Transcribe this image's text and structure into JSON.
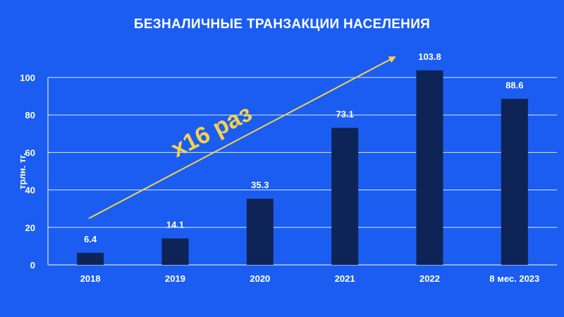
{
  "chart_data": {
    "type": "bar",
    "title": "БЕЗНАЛИЧНЫЕ ТРАНЗАКЦИИ НАСЕЛЕНИЯ",
    "ylabel": "трлн. тг.",
    "xlabel": "",
    "ylim": [
      0,
      100
    ],
    "yticks": [
      0,
      20,
      40,
      60,
      80,
      100
    ],
    "categories": [
      "2018",
      "2019",
      "2020",
      "2021",
      "2022",
      "8 мес. 2023"
    ],
    "values": [
      6.4,
      14.1,
      35.3,
      73.1,
      103.8,
      88.6
    ],
    "value_labels": [
      "6.4",
      "14.1",
      "35.3",
      "73.1",
      "103.8",
      "88.6"
    ],
    "annotation": "x16 раз",
    "grid": true,
    "colors": {
      "background": "#1a5df0",
      "bar": "#0e2456",
      "gridline": "#ffffff",
      "arrow": "#f3d34a",
      "text": "#ffffff"
    }
  }
}
